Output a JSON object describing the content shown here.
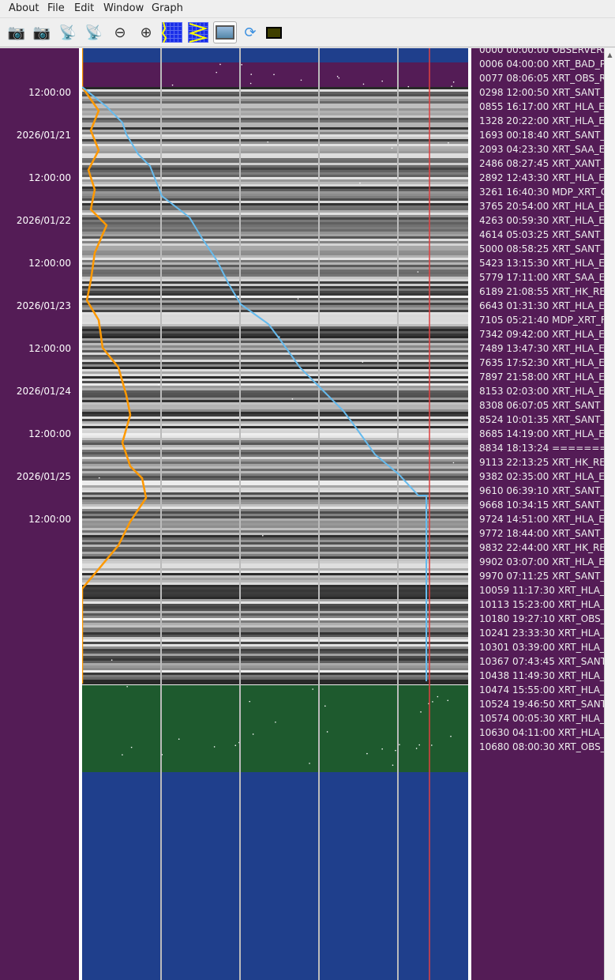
{
  "menu": [
    "About",
    "File",
    "Edit",
    "Window",
    "Graph"
  ],
  "toolbar": [
    {
      "icon": "camera-up-icon"
    },
    {
      "icon": "camera-down-icon"
    },
    {
      "icon": "satellite-dish-up-icon"
    },
    {
      "icon": "satellite-dish-down-icon"
    },
    {
      "icon": "zoom-out-icon"
    },
    {
      "icon": "zoom-in-icon"
    },
    {
      "icon": "graph-orange-line-icon"
    },
    {
      "icon": "graph-zigzag-icon"
    },
    {
      "icon": "film-icon",
      "active": true
    },
    {
      "icon": "refresh-icon"
    },
    {
      "icon": "color-swatch-icon",
      "color": "#3f3f00"
    }
  ],
  "time_axis": [
    "12:00:00",
    "2026/01/21",
    "12:00:00",
    "2026/01/22",
    "12:00:00",
    "2026/01/23",
    "12:00:00",
    "2026/01/24",
    "12:00:00",
    "2026/01/25",
    "12:00:00"
  ],
  "colors": {
    "panel": "#541c56",
    "blue": "#1f3f8c",
    "green": "#1e5a2e",
    "orange": "#ff9900",
    "cyan": "#66bbee",
    "red": "#e04040"
  },
  "events": [
    "0000 00:00:00 OBSERVER:",
    "0006 04:00:00 XRT_BAD_P",
    "0077 08:06:05 XRT_OBS_R",
    "0298 12:00:50 XRT_SANT_",
    "0855 16:17:00 XRT_HLA_EI",
    "1328 20:22:00 XRT_HLA_EI",
    "1693 00:18:40 XRT_SANT_",
    "2093 04:23:30 XRT_SAA_EI",
    "2486 08:27:45 XRT_XANT_",
    "2892 12:43:30 XRT_HLA_EI",
    "3261 16:40:30 MDP_XRT_C",
    "3765 20:54:00 XRT_HLA_EI",
    "4263 00:59:30 XRT_HLA_EI",
    "4614 05:03:25 XRT_SANT_",
    "5000 08:58:25 XRT_SANT_",
    "5423 13:15:30 XRT_HLA_EI",
    "5779 17:11:00 XRT_SAA_EX",
    "6189 21:08:55 XRT_HK_RE",
    "6643 01:31:30 XRT_HLA_EI",
    "7105 05:21:40 MDP_XRT_F",
    "7342 09:42:00 XRT_HLA_EI",
    "7489 13:47:30 XRT_HLA_EI",
    "7635 17:52:30 XRT_HLA_EI",
    "7897 21:58:00 XRT_HLA_EI",
    "8153 02:03:00 XRT_HLA_EI",
    "8308 06:07:05 XRT_SANT_",
    "8524 10:01:35 XRT_SANT_",
    "8685 14:19:00 XRT_HLA_EI",
    "8834 18:13:24 ==========",
    "9113 22:13:25 XRT_HK_RE",
    "9382 02:35:00 XRT_HLA_EI",
    "9610 06:39:10 XRT_SANT_",
    "9668 10:34:15 XRT_SANT_",
    "9724 14:51:00 XRT_HLA_EI",
    "9772 18:44:00 XRT_SANT_",
    "9832 22:44:00 XRT_HK_RE",
    "9902 03:07:00 XRT_HLA_EI",
    "9970 07:11:25 XRT_SANT_",
    "10059 11:17:30 XRT_HLA_I",
    "10113 15:23:00 XRT_HLA_I",
    "10180 19:27:10 XRT_OBS_",
    "10241 23:33:30 XRT_HLA_I",
    "10301 03:39:00 XRT_HLA_I",
    "10367 07:43:45 XRT_SANT",
    "10438 11:49:30 XRT_HLA_I",
    "10474 15:55:00 XRT_HLA_I",
    "10524 19:46:50 XRT_SANT",
    "10574 00:05:30 XRT_HLA_I",
    "10630 04:11:00 XRT_HLA_I",
    "10680 08:00:30 XRT_OBS_"
  ]
}
